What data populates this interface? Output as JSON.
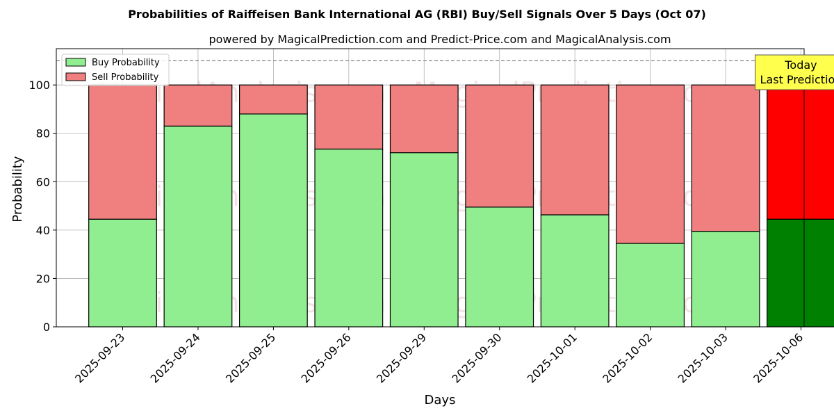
{
  "chart_data": {
    "type": "bar",
    "title": "Probabilities of Raiffeisen Bank International AG (RBI) Buy/Sell Signals Over 5 Days (Oct 07)",
    "subtitle": "powered by MagicalPrediction.com and Predict-Price.com and MagicalAnalysis.com",
    "xlabel": "Days",
    "ylabel": "Probability",
    "ylim": [
      0,
      115
    ],
    "yticks": [
      0,
      20,
      40,
      60,
      80,
      100
    ],
    "grid": true,
    "legend_position": "top-left",
    "categories": [
      "2025-09-23",
      "2025-09-24",
      "2025-09-25",
      "2025-09-26",
      "2025-09-29",
      "2025-09-30",
      "2025-10-01",
      "2025-10-02",
      "2025-10-03",
      "2025-10-06"
    ],
    "series": [
      {
        "name": "Buy Probability",
        "values": [
          44.5,
          83,
          88,
          73.5,
          72,
          49.5,
          46.3,
          34.5,
          39.5,
          44.5
        ]
      },
      {
        "name": "Sell Probability",
        "values": [
          55.5,
          17,
          12,
          26.5,
          28,
          50.5,
          53.7,
          65.5,
          60.5,
          55.5
        ]
      }
    ],
    "reference_line": {
      "value": 110,
      "style": "dashed"
    },
    "annotation": {
      "line1": "Today",
      "line2": "Last Prediction"
    },
    "watermarks": [
      "MagicalAnalysis.com",
      "MagicalPrediction.com"
    ],
    "colors": {
      "buy": "#90ee90",
      "sell": "#f08080",
      "buy_highlight": "#008000",
      "sell_highlight": "#ff0000",
      "annotation_bg": "#ffff4d"
    }
  }
}
